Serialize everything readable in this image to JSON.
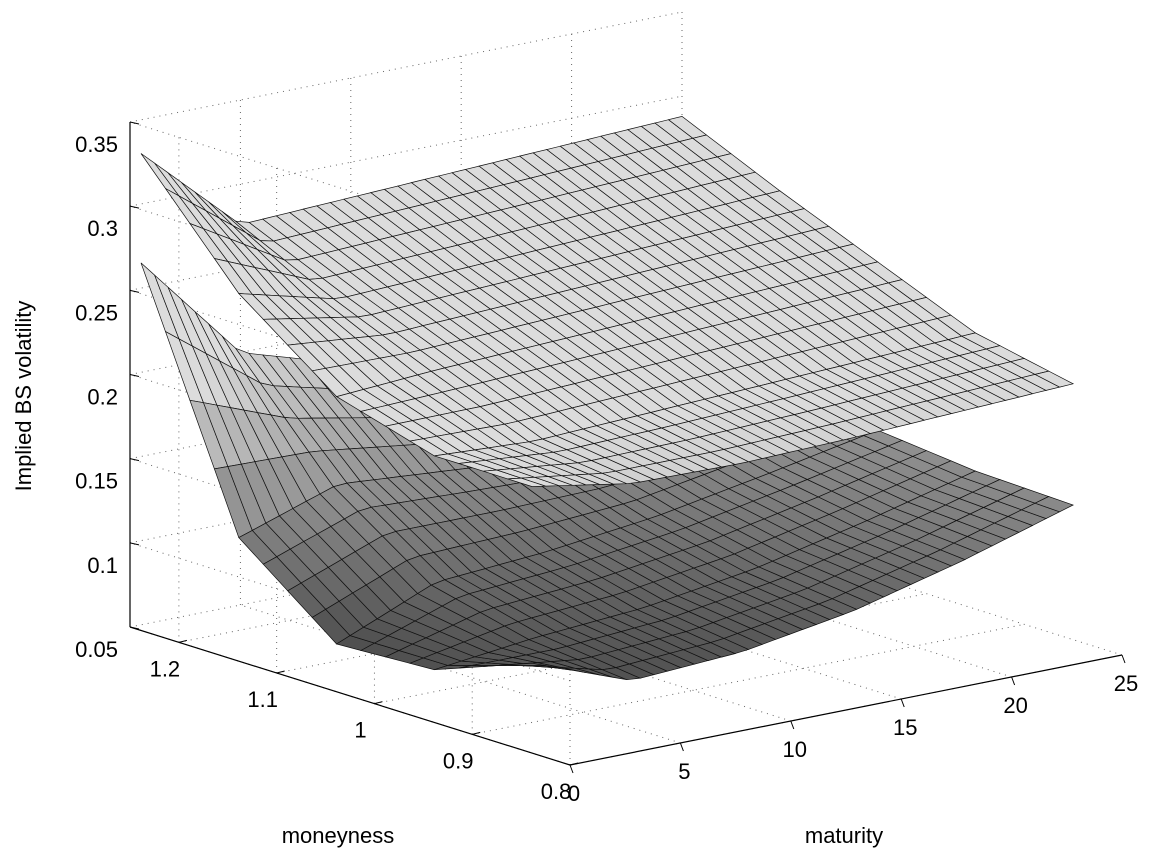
{
  "chart_data": {
    "type": "surface",
    "title": "",
    "xlabel": "maturity",
    "ylabel": "moneyness",
    "zlabel": "Implied BS volatility",
    "xlim": [
      0,
      25
    ],
    "ylim": [
      0.8,
      1.25
    ],
    "zlim": [
      0.05,
      0.35
    ],
    "x_ticks": [
      "0",
      "5",
      "10",
      "15",
      "20",
      "25"
    ],
    "y_ticks": [
      "0.8",
      "0.9",
      "1",
      "1.1",
      "1.2"
    ],
    "z_ticks": [
      "0.05",
      "0.1",
      "0.15",
      "0.2",
      "0.25",
      "0.3",
      "0.35"
    ],
    "grid": true,
    "colormap": "gray",
    "series": [
      {
        "maturity": [
          0.5,
          5,
          10,
          15,
          20,
          25
        ],
        "moneyness": [
          0.85,
          0.95,
          1.05,
          1.15,
          1.25
        ],
        "values": [
          [
            0.205,
            0.195,
            0.194,
            0.196,
            0.199,
            0.202
          ],
          [
            0.205,
            0.202,
            0.205,
            0.208,
            0.211,
            0.214
          ],
          [
            0.222,
            0.226,
            0.229,
            0.232,
            0.235,
            0.238
          ],
          [
            0.265,
            0.25,
            0.253,
            0.256,
            0.259,
            0.262
          ],
          [
            0.33,
            0.276,
            0.279,
            0.282,
            0.285,
            0.288
          ]
        ]
      },
      {
        "maturity": [
          0.5,
          5,
          10,
          15,
          20,
          25
        ],
        "moneyness": [
          0.85,
          0.95,
          1.05,
          1.15,
          1.25
        ],
        "values": [
          [
            0.1,
            0.078,
            0.082,
            0.093,
            0.11,
            0.13
          ],
          [
            0.078,
            0.085,
            0.09,
            0.1,
            0.115,
            0.132
          ],
          [
            0.075,
            0.1,
            0.105,
            0.113,
            0.125,
            0.138
          ],
          [
            0.12,
            0.14,
            0.135,
            0.13,
            0.14,
            0.15
          ],
          [
            0.265,
            0.2,
            0.18,
            0.17,
            0.168,
            0.168
          ]
        ]
      }
    ]
  }
}
